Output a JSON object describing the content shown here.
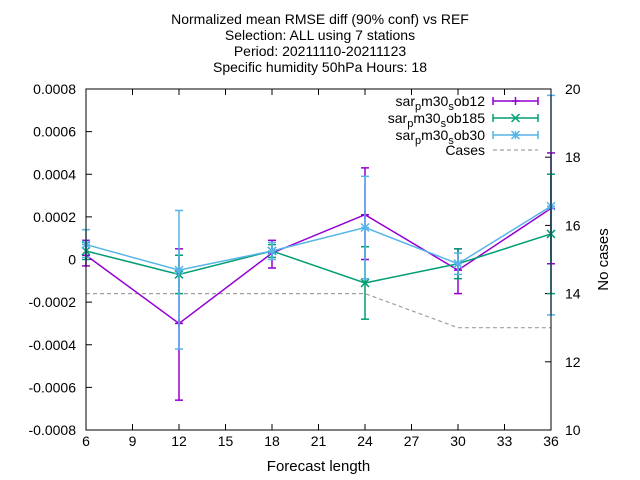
{
  "chart_data": {
    "type": "line",
    "title_lines": [
      "Normalized mean RMSE diff (90% conf) vs REF",
      "Selection: ALL using     7 stations",
      "Period: 20211110-20211123",
      "Specific humidity 50hPa   Hours: 18"
    ],
    "xlabel": "Forecast length",
    "ylabel_right": "No cases",
    "xlim": [
      6,
      36
    ],
    "ylim": [
      -0.0008,
      0.0008
    ],
    "y2lim": [
      10,
      20
    ],
    "x_ticks": [
      6,
      9,
      12,
      15,
      18,
      21,
      24,
      27,
      30,
      33,
      36
    ],
    "y_ticks": [
      -0.0008,
      -0.0006,
      -0.0004,
      -0.0002,
      0,
      0.0002,
      0.0004,
      0.0006,
      0.0008
    ],
    "y_tick_labels": [
      "-0.0008",
      "-0.0006",
      "-0.0004",
      "-0.0002",
      "0",
      "0.0002",
      "0.0004",
      "0.0006",
      "0.0008"
    ],
    "y2_ticks": [
      10,
      12,
      14,
      16,
      18,
      20
    ],
    "y2_tick_labels": [
      "10",
      "12",
      "14",
      "16",
      "18",
      "20"
    ],
    "legend_position": "top-right",
    "grid": false,
    "series": [
      {
        "legend_parts": [
          [
            "sar",
            ""
          ],
          [
            "p",
            "sub"
          ],
          [
            "m30",
            ""
          ],
          [
            "s",
            "sub"
          ],
          [
            "ob12",
            ""
          ]
        ],
        "color": "#9400d3",
        "marker": "plus",
        "x": [
          6,
          12,
          18,
          24,
          30,
          36
        ],
        "y": [
          2e-05,
          -0.0003,
          3e-05,
          0.00021,
          -5e-05,
          0.00024
        ],
        "err_low": [
          -3e-05,
          -0.00066,
          -4e-05,
          0.0,
          -0.00016,
          -2e-05
        ],
        "err_high": [
          9e-05,
          5e-05,
          9e-05,
          0.00043,
          5e-05,
          0.0005
        ]
      },
      {
        "legend_parts": [
          [
            "sar",
            ""
          ],
          [
            "p",
            "sub"
          ],
          [
            "m30",
            ""
          ],
          [
            "s",
            "sub"
          ],
          [
            "ob185",
            ""
          ]
        ],
        "color": "#009e73",
        "marker": "cross",
        "x": [
          6,
          12,
          18,
          24,
          30,
          36
        ],
        "y": [
          4e-05,
          -7e-05,
          4e-05,
          -0.00011,
          -2e-05,
          0.00012
        ],
        "err_low": [
          0.0,
          -0.00016,
          1e-05,
          -0.00028,
          -9e-05,
          -0.00016
        ],
        "err_high": [
          8e-05,
          2e-05,
          7e-05,
          6e-05,
          5e-05,
          0.0004
        ]
      },
      {
        "legend_parts": [
          [
            "sar",
            ""
          ],
          [
            "p",
            "sub"
          ],
          [
            "m30",
            ""
          ],
          [
            "s",
            "sub"
          ],
          [
            "ob30",
            ""
          ]
        ],
        "color": "#56b4e9",
        "marker": "star",
        "x": [
          6,
          12,
          18,
          24,
          30,
          36
        ],
        "y": [
          7e-05,
          -5e-05,
          4e-05,
          0.00015,
          -2e-05,
          0.00025
        ],
        "err_low": [
          1e-05,
          -0.00042,
          0.0,
          -9e-05,
          -7e-05,
          -0.00026
        ],
        "err_high": [
          0.00014,
          0.00023,
          8e-05,
          0.00039,
          3e-05,
          0.00077
        ]
      }
    ],
    "cases": {
      "label": "Cases",
      "color": "#a0a0a0",
      "x": [
        6,
        12,
        18,
        24,
        30,
        36
      ],
      "y": [
        14,
        14,
        14,
        14,
        13,
        13
      ]
    }
  }
}
